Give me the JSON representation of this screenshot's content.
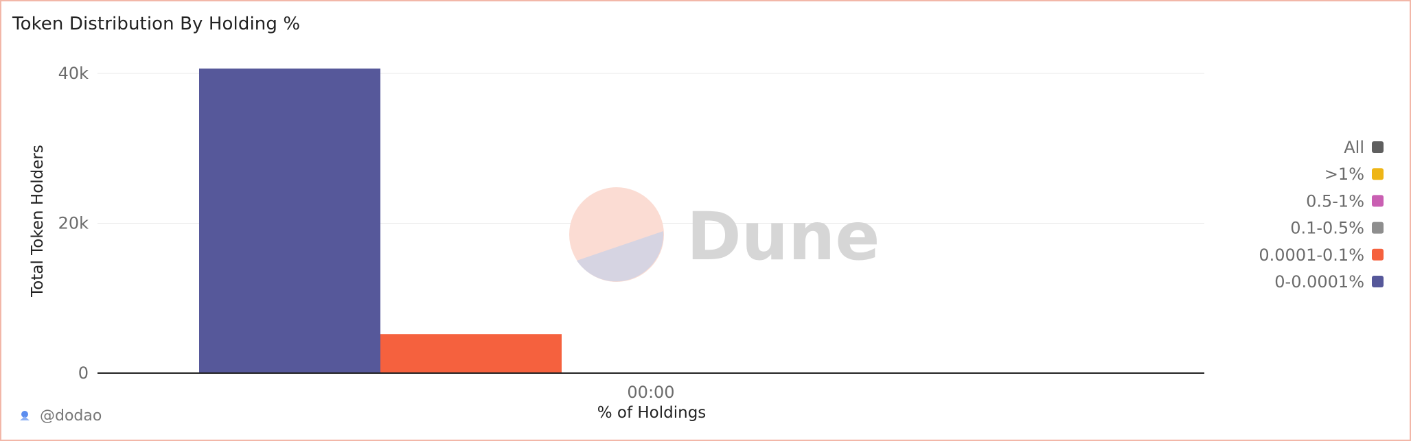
{
  "chart_data": {
    "type": "bar",
    "title": "Token Distribution By Holding %",
    "xlabel": "% of Holdings",
    "ylabel": "Total Token Holders",
    "categories": [
      "00:00"
    ],
    "ylim": [
      0,
      40000
    ],
    "yticks": [
      {
        "value": 0,
        "label": "0"
      },
      {
        "value": 20000,
        "label": "20k"
      },
      {
        "value": 40000,
        "label": "40k"
      }
    ],
    "series": [
      {
        "name": "0-0.0001%",
        "color": "#56589a",
        "values": [
          40650
        ]
      },
      {
        "name": "0.0001-0.1%",
        "color": "#f5613e",
        "values": [
          5200
        ]
      },
      {
        "name": "0.1-0.5%",
        "color": "#8e8e8e",
        "values": [
          60
        ]
      },
      {
        "name": "0.5-1%",
        "color": "#c95fb2",
        "values": [
          0
        ]
      },
      {
        "name": ">1%",
        "color": "#eeb516",
        "values": [
          0
        ]
      }
    ],
    "legend": [
      {
        "label": "All",
        "color": "#5f5f5f"
      },
      {
        "label": ">1%",
        "color": "#eeb516"
      },
      {
        "label": "0.5-1%",
        "color": "#c95fb2"
      },
      {
        "label": "0.1-0.5%",
        "color": "#8e8e8e"
      },
      {
        "label": "0.0001-0.1%",
        "color": "#f5613e"
      },
      {
        "label": "0-0.0001%",
        "color": "#56589a"
      }
    ],
    "legend_position": "right",
    "grid": true
  },
  "watermark": {
    "text": "Dune",
    "colors": {
      "top": "#fbdcd3",
      "bottom": "#d6d4e2"
    }
  },
  "footer": {
    "handle": "@dodao",
    "icon": "dodao-logo-icon"
  },
  "colors": {
    "border": "#f2b7a8",
    "grid": "#e8e8e8",
    "axis": "#222222"
  }
}
